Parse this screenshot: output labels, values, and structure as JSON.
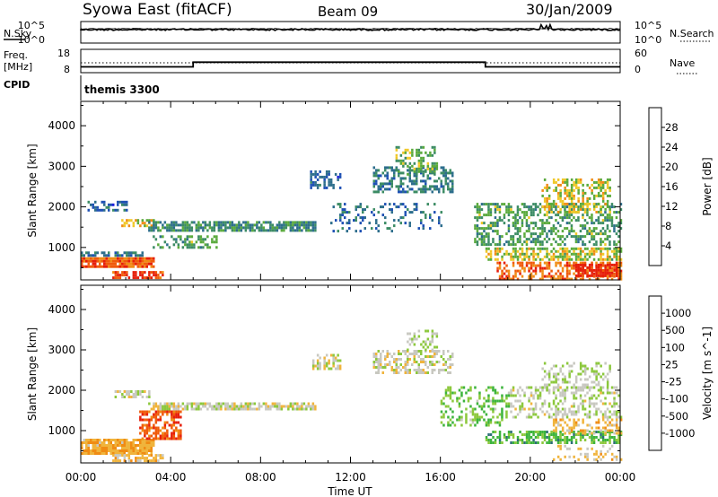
{
  "header": {
    "station": "Syowa East (fitACF)",
    "beam": "Beam 09",
    "date": "30/Jan/2009"
  },
  "labels": {
    "nsky": "N.Sky",
    "nsearch": "N.Search",
    "freq_line1": "Freq.",
    "freq_line2": "[MHz]",
    "nave": "Nave",
    "cpid": "CPID",
    "cpid_value": "themis 3300"
  },
  "noise_axis": {
    "left_ticks": [
      "10^5",
      "10^0"
    ],
    "right_ticks": [
      "10^5",
      "10^0"
    ]
  },
  "freq_axis": {
    "left_ticks": [
      "18",
      "8"
    ],
    "right_ticks": [
      "60",
      "0"
    ]
  },
  "colors": {
    "noise_line": "#000000",
    "power": [
      "#1e1edc",
      "#1e50b4",
      "#2d6e8c",
      "#3c8c64",
      "#5aaa3c",
      "#f0c828",
      "#f08c14",
      "#f05a0a",
      "#e61e0a"
    ],
    "velocity": [
      "#e61e0a",
      "#f05a0a",
      "#f08c14",
      "#f0b43c",
      "#c8c8c0",
      "#8cc83c",
      "#3cb43c",
      "#2d6e78",
      "#1e46b4"
    ]
  },
  "chart_data": [
    {
      "type": "heatmap",
      "name": "power-panel",
      "ylabel": "Slant Range [km]",
      "xlabel": "Time UT",
      "x_ticks": [
        "00:00",
        "04:00",
        "08:00",
        "12:00",
        "16:00",
        "20:00",
        "00:00"
      ],
      "y_ticks": [
        1000,
        2000,
        3000,
        4000
      ],
      "ylim": [
        200,
        4600
      ],
      "xlim_hours": [
        0,
        24
      ],
      "colorbar": {
        "label": "Power [dB]",
        "ticks": [
          "4",
          "8",
          "12",
          "16",
          "20",
          "24",
          "28"
        ],
        "range": [
          0,
          30
        ]
      },
      "regions": [
        {
          "t0": 0.0,
          "t1": 3.2,
          "r0": 560,
          "r1": 760,
          "value": 25,
          "density": 0.9
        },
        {
          "t0": 1.4,
          "t1": 3.6,
          "r0": 250,
          "r1": 420,
          "value": 27,
          "density": 0.7
        },
        {
          "t0": 0.0,
          "t1": 2.8,
          "r0": 800,
          "r1": 900,
          "value": 9,
          "density": 0.6
        },
        {
          "t0": 0.3,
          "t1": 2.0,
          "r0": 1900,
          "r1": 2150,
          "value": 7,
          "density": 0.5
        },
        {
          "t0": 1.8,
          "t1": 3.2,
          "r0": 1550,
          "r1": 1700,
          "value": 18,
          "density": 0.6
        },
        {
          "t0": 3.0,
          "t1": 10.4,
          "r0": 1400,
          "r1": 1650,
          "value": 11,
          "density": 0.75
        },
        {
          "t0": 3.2,
          "t1": 6.0,
          "r0": 1000,
          "r1": 1300,
          "value": 13,
          "density": 0.5
        },
        {
          "t0": 10.2,
          "t1": 11.5,
          "r0": 2500,
          "r1": 2900,
          "value": 7,
          "density": 0.5
        },
        {
          "t0": 13.0,
          "t1": 16.5,
          "r0": 2400,
          "r1": 3000,
          "value": 9,
          "density": 0.5
        },
        {
          "t0": 14.0,
          "t1": 15.8,
          "r0": 2800,
          "r1": 3500,
          "value": 14,
          "density": 0.45
        },
        {
          "t0": 11.0,
          "t1": 16.0,
          "r0": 1400,
          "r1": 2100,
          "value": 8,
          "density": 0.2
        },
        {
          "t0": 17.5,
          "t1": 24.0,
          "r0": 1100,
          "r1": 2100,
          "value": 13,
          "density": 0.45
        },
        {
          "t0": 18.0,
          "t1": 24.0,
          "r0": 700,
          "r1": 1000,
          "value": 17,
          "density": 0.6
        },
        {
          "t0": 18.5,
          "t1": 24.0,
          "r0": 250,
          "r1": 650,
          "value": 24,
          "density": 0.55
        },
        {
          "t0": 20.5,
          "t1": 23.5,
          "r0": 1900,
          "r1": 2700,
          "value": 18,
          "density": 0.45
        },
        {
          "t0": 22.0,
          "t1": 23.8,
          "r0": 300,
          "r1": 600,
          "value": 29,
          "density": 0.7
        }
      ]
    },
    {
      "type": "heatmap",
      "name": "velocity-panel",
      "ylabel": "Slant Range [km]",
      "xlabel": "Time UT",
      "x_ticks": [
        "00:00",
        "04:00",
        "08:00",
        "12:00",
        "16:00",
        "20:00",
        "00:00"
      ],
      "y_ticks": [
        1000,
        2000,
        3000,
        4000
      ],
      "ylim": [
        200,
        4600
      ],
      "xlim_hours": [
        0,
        24
      ],
      "colorbar": {
        "label": "Velocity [m s^-1]",
        "ticks": [
          "-1000",
          "-500",
          "-100",
          "-25",
          "25",
          "100",
          "500",
          "1000"
        ],
        "range": [
          -1000,
          1000
        ]
      },
      "regions": [
        {
          "t0": 0.0,
          "t1": 3.2,
          "r0": 450,
          "r1": 800,
          "value": -300,
          "density": 0.9
        },
        {
          "t0": 1.4,
          "t1": 3.6,
          "r0": 250,
          "r1": 420,
          "value": -200,
          "density": 0.7
        },
        {
          "t0": 2.6,
          "t1": 4.4,
          "r0": 800,
          "r1": 1500,
          "value": -700,
          "density": 0.65
        },
        {
          "t0": 3.0,
          "t1": 10.4,
          "r0": 1500,
          "r1": 1700,
          "value": 0,
          "density": 0.75
        },
        {
          "t0": 1.5,
          "t1": 3.0,
          "r0": 1850,
          "r1": 2000,
          "value": 0,
          "density": 0.5
        },
        {
          "t0": 10.2,
          "t1": 11.5,
          "r0": 2500,
          "r1": 2900,
          "value": 0,
          "density": 0.45
        },
        {
          "t0": 13.0,
          "t1": 16.5,
          "r0": 2400,
          "r1": 3000,
          "value": 0,
          "density": 0.5
        },
        {
          "t0": 14.5,
          "t1": 15.8,
          "r0": 3000,
          "r1": 3500,
          "value": 150,
          "density": 0.35
        },
        {
          "t0": 16.0,
          "t1": 19.0,
          "r0": 1100,
          "r1": 2100,
          "value": 300,
          "density": 0.35
        },
        {
          "t0": 18.0,
          "t1": 24.0,
          "r0": 700,
          "r1": 1000,
          "value": 400,
          "density": 0.55
        },
        {
          "t0": 19.0,
          "t1": 24.0,
          "r0": 1300,
          "r1": 2100,
          "value": 60,
          "density": 0.4
        },
        {
          "t0": 21.0,
          "t1": 24.0,
          "r0": 950,
          "r1": 1300,
          "value": -200,
          "density": 0.4
        },
        {
          "t0": 21.0,
          "t1": 24.0,
          "r0": 300,
          "r1": 650,
          "value": -150,
          "density": 0.25
        },
        {
          "t0": 20.5,
          "t1": 23.5,
          "r0": 2000,
          "r1": 2700,
          "value": 100,
          "density": 0.35
        }
      ]
    }
  ],
  "freq_series": [
    {
      "t0": 0.0,
      "t1": 5.0,
      "value": 10.5
    },
    {
      "t0": 5.0,
      "t1": 18.0,
      "value": 12.5
    },
    {
      "t0": 18.0,
      "t1": 24.0,
      "value": 10.5
    }
  ]
}
